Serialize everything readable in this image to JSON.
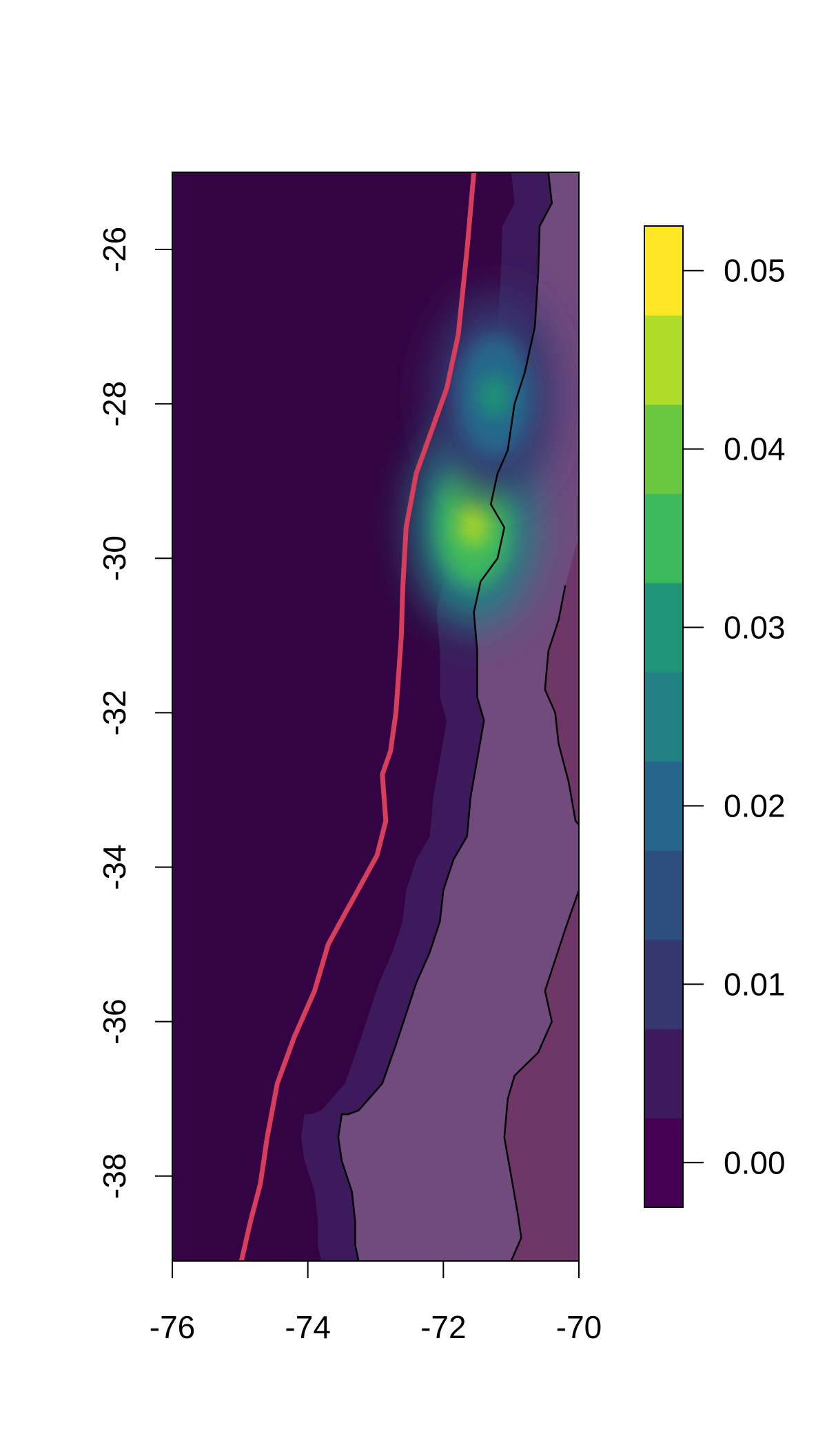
{
  "map": {
    "extent": {
      "lon_range": [
        -76,
        -70
      ],
      "lat_range": [
        -39.1,
        -25
      ]
    },
    "x_axis": {
      "ticks": [
        -76,
        -74,
        -72,
        -70
      ],
      "labels": [
        "-76",
        "-74",
        "-72",
        "-70"
      ]
    },
    "y_axis": {
      "ticks": [
        -26,
        -28,
        -30,
        -32,
        -34,
        -36,
        -38
      ],
      "labels": [
        "-26",
        "-28",
        "-30",
        "-32",
        "-34",
        "-36",
        "-38"
      ]
    },
    "ocean_color": "#340343",
    "land_color": "#6e3566",
    "trench_line_color": "#d63e5c",
    "trench_line": [
      [
        -71.55,
        -25
      ],
      [
        -71.65,
        -26.0
      ],
      [
        -71.78,
        -27.1
      ],
      [
        -71.95,
        -27.8
      ],
      [
        -72.4,
        -28.9
      ],
      [
        -72.55,
        -29.6
      ],
      [
        -72.6,
        -30.4
      ],
      [
        -72.62,
        -31.0
      ],
      [
        -72.7,
        -32.0
      ],
      [
        -72.78,
        -32.5
      ],
      [
        -72.9,
        -32.8
      ],
      [
        -72.85,
        -33.4
      ],
      [
        -72.98,
        -33.85
      ],
      [
        -73.45,
        -34.6
      ],
      [
        -73.7,
        -35.0
      ],
      [
        -73.9,
        -35.6
      ],
      [
        -74.2,
        -36.2
      ],
      [
        -74.45,
        -36.8
      ],
      [
        -74.6,
        -37.5
      ],
      [
        -74.7,
        -38.1
      ],
      [
        -74.85,
        -38.6
      ],
      [
        -74.98,
        -39.1
      ]
    ],
    "coastline": [
      [
        -70.45,
        -25
      ],
      [
        -70.4,
        -25.4
      ],
      [
        -70.58,
        -25.7
      ],
      [
        -70.6,
        -26.3
      ],
      [
        -70.65,
        -27.0
      ],
      [
        -70.8,
        -27.6
      ],
      [
        -70.95,
        -28.0
      ],
      [
        -71.05,
        -28.6
      ],
      [
        -71.2,
        -28.9
      ],
      [
        -71.3,
        -29.3
      ],
      [
        -71.1,
        -29.6
      ],
      [
        -71.2,
        -30.0
      ],
      [
        -71.45,
        -30.3
      ],
      [
        -71.55,
        -30.7
      ],
      [
        -71.5,
        -31.2
      ],
      [
        -71.5,
        -31.8
      ],
      [
        -71.4,
        -32.1
      ],
      [
        -71.5,
        -32.6
      ],
      [
        -71.6,
        -33.1
      ],
      [
        -71.65,
        -33.6
      ],
      [
        -71.85,
        -33.9
      ],
      [
        -72.0,
        -34.3
      ],
      [
        -72.05,
        -34.7
      ],
      [
        -72.2,
        -35.1
      ],
      [
        -72.4,
        -35.5
      ],
      [
        -72.55,
        -35.9
      ],
      [
        -72.7,
        -36.3
      ],
      [
        -72.9,
        -36.8
      ],
      [
        -73.1,
        -37.0
      ],
      [
        -73.25,
        -37.15
      ],
      [
        -73.4,
        -37.2
      ],
      [
        -73.5,
        -37.2
      ],
      [
        -73.55,
        -37.5
      ],
      [
        -73.5,
        -37.8
      ],
      [
        -73.35,
        -38.2
      ],
      [
        -73.3,
        -38.6
      ],
      [
        -73.3,
        -38.9
      ],
      [
        -73.25,
        -39.1
      ]
    ],
    "border": [
      [
        -70.0,
        -29.2
      ],
      [
        -70.0,
        -29.7
      ],
      [
        -70.2,
        -30.35
      ],
      [
        -70.3,
        -30.8
      ],
      [
        -70.45,
        -31.2
      ],
      [
        -70.5,
        -31.7
      ],
      [
        -70.35,
        -32.0
      ],
      [
        -70.3,
        -32.4
      ],
      [
        -70.15,
        -32.9
      ],
      [
        -70.05,
        -33.4
      ],
      [
        -70.0,
        -33.45
      ],
      [
        -70.0,
        -34.3
      ],
      [
        -70.2,
        -34.8
      ],
      [
        -70.35,
        -35.2
      ],
      [
        -70.5,
        -35.6
      ],
      [
        -70.4,
        -36.0
      ],
      [
        -70.6,
        -36.4
      ],
      [
        -70.95,
        -36.7
      ],
      [
        -71.05,
        -37.0
      ],
      [
        -71.1,
        -37.5
      ],
      [
        -71.0,
        -38.0
      ],
      [
        -70.9,
        -38.5
      ],
      [
        -70.85,
        -38.8
      ],
      [
        -71.0,
        -39.1
      ]
    ]
  },
  "colorbar": {
    "colors": [
      "#440154",
      "#3c1a5b",
      "#34386e",
      "#2d4f7f",
      "#27668c",
      "#218084",
      "#1f9476",
      "#3cb85d",
      "#6ac840",
      "#aedc28",
      "#fde725"
    ],
    "ticks": [
      0.0,
      0.01,
      0.02,
      0.03,
      0.04,
      0.05
    ],
    "labels": [
      "0.00",
      "0.01",
      "0.02",
      "0.03",
      "0.04",
      "0.05"
    ]
  },
  "hotspots": [
    {
      "lon": -71.55,
      "lat": -29.55,
      "value": 0.04
    },
    {
      "lon": -71.25,
      "lat": -27.9,
      "value": 0.025
    }
  ]
}
